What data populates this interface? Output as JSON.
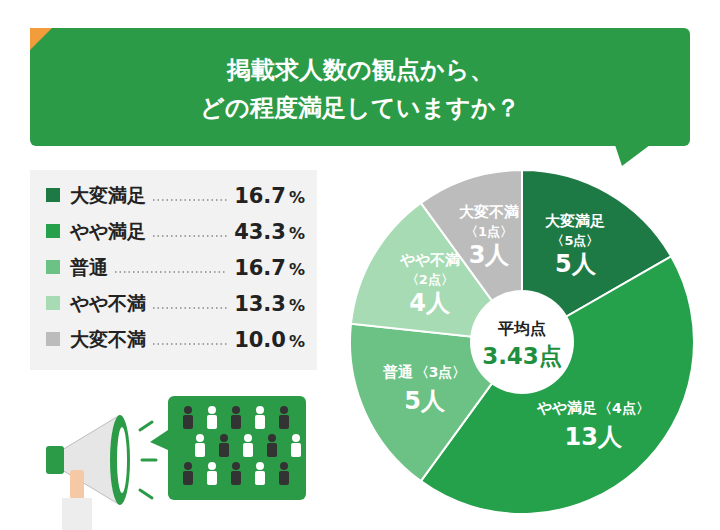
{
  "chart_data": {
    "type": "pie",
    "title": "掲載求人数の観点から、どの程度満足していますか？",
    "categories": [
      "大変満足",
      "やや満足",
      "普通",
      "やや不満",
      "大変不満"
    ],
    "values": [
      16.7,
      43.3,
      16.7,
      13.3,
      10.0
    ],
    "value_labels": [
      "16.7%",
      "43.3%",
      "16.7%",
      "13.3%",
      "10.0%"
    ],
    "counts": [
      5,
      13,
      5,
      4,
      3
    ],
    "count_labels": [
      "5人",
      "13人",
      "5人",
      "4人",
      "3人"
    ],
    "scores": [
      5,
      4,
      3,
      2,
      1
    ],
    "score_labels": [
      "〈5点〉",
      "〈4点〉",
      "〈3点〉",
      "〈2点〉",
      "〈1点〉"
    ],
    "average": {
      "label": "平均点",
      "value": 3.43,
      "value_label": "3.43点"
    },
    "colors": [
      "#1e7a45",
      "#25a04b",
      "#6cc184",
      "#a6dbb3",
      "#bcbcbc"
    ],
    "legend": "left",
    "data_labels": true
  }
}
